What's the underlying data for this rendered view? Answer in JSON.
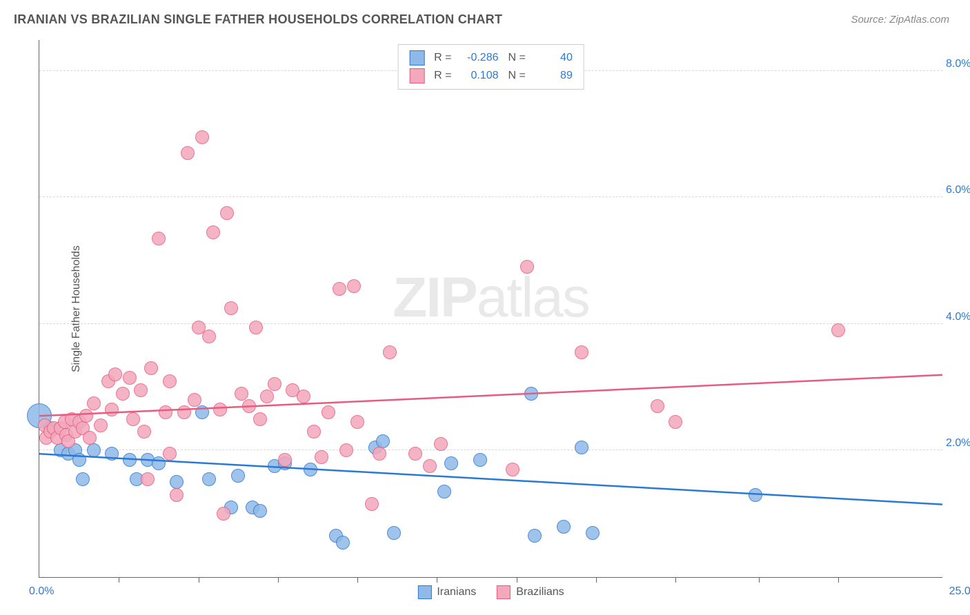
{
  "header": {
    "title": "IRANIAN VS BRAZILIAN SINGLE FATHER HOUSEHOLDS CORRELATION CHART",
    "source_label": "Source: ZipAtlas.com"
  },
  "watermark": {
    "bold": "ZIP",
    "light": "atlas"
  },
  "chart": {
    "type": "scatter",
    "yaxis_title": "Single Father Households",
    "xlim": [
      0,
      25
    ],
    "ylim": [
      0,
      8.5
    ],
    "xtick_positions": [
      2.2,
      4.4,
      6.6,
      8.8,
      11.0,
      13.2,
      15.4,
      17.6,
      19.9,
      22.1
    ],
    "xlabel_min": "0.0%",
    "xlabel_max": "25.0%",
    "yticks": [
      {
        "v": 2.0,
        "label": "2.0%"
      },
      {
        "v": 4.0,
        "label": "4.0%"
      },
      {
        "v": 6.0,
        "label": "6.0%"
      },
      {
        "v": 8.0,
        "label": "8.0%"
      }
    ],
    "grid_color": "#d8d8d8",
    "axis_color": "#666666",
    "background_color": "#ffffff",
    "point_radius": 10,
    "point_stroke_width": 1.5,
    "point_fill_opacity": 0.35,
    "trendline_width": 2.5
  },
  "series": [
    {
      "name": "Iranians",
      "color_stroke": "#2a7ad4",
      "color_fill": "#8fb9e8",
      "R": "-0.286",
      "N": "40",
      "trend": {
        "y_at_xmin": 1.95,
        "y_at_xmax": 1.15
      },
      "points": [
        {
          "x": 0.0,
          "y": 2.55,
          "r": 18
        },
        {
          "x": 0.3,
          "y": 2.35
        },
        {
          "x": 0.6,
          "y": 2.0
        },
        {
          "x": 0.8,
          "y": 1.95
        },
        {
          "x": 1.0,
          "y": 2.0
        },
        {
          "x": 1.1,
          "y": 1.85
        },
        {
          "x": 1.2,
          "y": 1.55
        },
        {
          "x": 1.5,
          "y": 2.0
        },
        {
          "x": 2.0,
          "y": 1.95
        },
        {
          "x": 2.5,
          "y": 1.85
        },
        {
          "x": 2.7,
          "y": 1.55
        },
        {
          "x": 3.0,
          "y": 1.85
        },
        {
          "x": 3.3,
          "y": 1.8
        },
        {
          "x": 3.8,
          "y": 1.5
        },
        {
          "x": 4.5,
          "y": 2.6
        },
        {
          "x": 4.7,
          "y": 1.55
        },
        {
          "x": 5.3,
          "y": 1.1
        },
        {
          "x": 5.5,
          "y": 1.6
        },
        {
          "x": 5.9,
          "y": 1.1
        },
        {
          "x": 6.1,
          "y": 1.05
        },
        {
          "x": 6.5,
          "y": 1.75
        },
        {
          "x": 6.8,
          "y": 1.8
        },
        {
          "x": 7.5,
          "y": 1.7
        },
        {
          "x": 8.2,
          "y": 0.65
        },
        {
          "x": 8.4,
          "y": 0.55
        },
        {
          "x": 9.3,
          "y": 2.05
        },
        {
          "x": 9.5,
          "y": 2.15
        },
        {
          "x": 9.8,
          "y": 0.7
        },
        {
          "x": 11.2,
          "y": 1.35
        },
        {
          "x": 11.4,
          "y": 1.8
        },
        {
          "x": 12.2,
          "y": 1.85
        },
        {
          "x": 13.6,
          "y": 2.9
        },
        {
          "x": 13.7,
          "y": 0.65
        },
        {
          "x": 14.5,
          "y": 0.8
        },
        {
          "x": 15.0,
          "y": 2.05
        },
        {
          "x": 15.3,
          "y": 0.7
        },
        {
          "x": 19.8,
          "y": 1.3
        }
      ]
    },
    {
      "name": "Brazilians",
      "color_stroke": "#e85b7f",
      "color_fill": "#f3a8bc",
      "R": "0.108",
      "N": "89",
      "trend": {
        "y_at_xmin": 2.55,
        "y_at_xmax": 3.2
      },
      "points": [
        {
          "x": 0.15,
          "y": 2.4
        },
        {
          "x": 0.2,
          "y": 2.2
        },
        {
          "x": 0.3,
          "y": 2.3
        },
        {
          "x": 0.4,
          "y": 2.35
        },
        {
          "x": 0.5,
          "y": 2.2
        },
        {
          "x": 0.6,
          "y": 2.35
        },
        {
          "x": 0.7,
          "y": 2.45
        },
        {
          "x": 0.75,
          "y": 2.25
        },
        {
          "x": 0.8,
          "y": 2.15
        },
        {
          "x": 0.9,
          "y": 2.5
        },
        {
          "x": 1.0,
          "y": 2.3
        },
        {
          "x": 1.1,
          "y": 2.45
        },
        {
          "x": 1.2,
          "y": 2.35
        },
        {
          "x": 1.3,
          "y": 2.55
        },
        {
          "x": 1.4,
          "y": 2.2
        },
        {
          "x": 1.5,
          "y": 2.75
        },
        {
          "x": 1.7,
          "y": 2.4
        },
        {
          "x": 1.9,
          "y": 3.1
        },
        {
          "x": 2.0,
          "y": 2.65
        },
        {
          "x": 2.1,
          "y": 3.2
        },
        {
          "x": 2.3,
          "y": 2.9
        },
        {
          "x": 2.5,
          "y": 3.15
        },
        {
          "x": 2.6,
          "y": 2.5
        },
        {
          "x": 2.8,
          "y": 2.95
        },
        {
          "x": 2.9,
          "y": 2.3
        },
        {
          "x": 3.0,
          "y": 1.55
        },
        {
          "x": 3.1,
          "y": 3.3
        },
        {
          "x": 3.3,
          "y": 5.35
        },
        {
          "x": 3.5,
          "y": 2.6
        },
        {
          "x": 3.6,
          "y": 1.95
        },
        {
          "x": 3.6,
          "y": 3.1
        },
        {
          "x": 3.8,
          "y": 1.3
        },
        {
          "x": 4.0,
          "y": 2.6
        },
        {
          "x": 4.1,
          "y": 6.7
        },
        {
          "x": 4.3,
          "y": 2.8
        },
        {
          "x": 4.4,
          "y": 3.95
        },
        {
          "x": 4.5,
          "y": 6.95
        },
        {
          "x": 4.7,
          "y": 3.8
        },
        {
          "x": 4.8,
          "y": 5.45
        },
        {
          "x": 5.0,
          "y": 2.65
        },
        {
          "x": 5.1,
          "y": 1.0
        },
        {
          "x": 5.2,
          "y": 5.75
        },
        {
          "x": 5.3,
          "y": 4.25
        },
        {
          "x": 5.6,
          "y": 2.9
        },
        {
          "x": 5.8,
          "y": 2.7
        },
        {
          "x": 6.0,
          "y": 3.95
        },
        {
          "x": 6.1,
          "y": 2.5
        },
        {
          "x": 6.3,
          "y": 2.85
        },
        {
          "x": 6.5,
          "y": 3.05
        },
        {
          "x": 6.8,
          "y": 1.85
        },
        {
          "x": 7.0,
          "y": 2.95
        },
        {
          "x": 7.3,
          "y": 2.85
        },
        {
          "x": 7.6,
          "y": 2.3
        },
        {
          "x": 7.8,
          "y": 1.9
        },
        {
          "x": 8.0,
          "y": 2.6
        },
        {
          "x": 8.3,
          "y": 4.55
        },
        {
          "x": 8.5,
          "y": 2.0
        },
        {
          "x": 8.7,
          "y": 4.6
        },
        {
          "x": 8.8,
          "y": 2.45
        },
        {
          "x": 9.2,
          "y": 1.15
        },
        {
          "x": 9.4,
          "y": 1.95
        },
        {
          "x": 9.7,
          "y": 3.55
        },
        {
          "x": 10.4,
          "y": 1.95
        },
        {
          "x": 10.8,
          "y": 1.75
        },
        {
          "x": 11.1,
          "y": 2.1
        },
        {
          "x": 13.1,
          "y": 1.7
        },
        {
          "x": 13.5,
          "y": 4.9
        },
        {
          "x": 15.0,
          "y": 3.55
        },
        {
          "x": 17.1,
          "y": 2.7
        },
        {
          "x": 17.6,
          "y": 2.45
        },
        {
          "x": 22.1,
          "y": 3.9
        }
      ]
    }
  ],
  "bottom_legend": [
    {
      "label": "Iranians",
      "stroke": "#2a7ad4",
      "fill": "#8fb9e8"
    },
    {
      "label": "Brazilians",
      "stroke": "#e85b7f",
      "fill": "#f3a8bc"
    }
  ]
}
